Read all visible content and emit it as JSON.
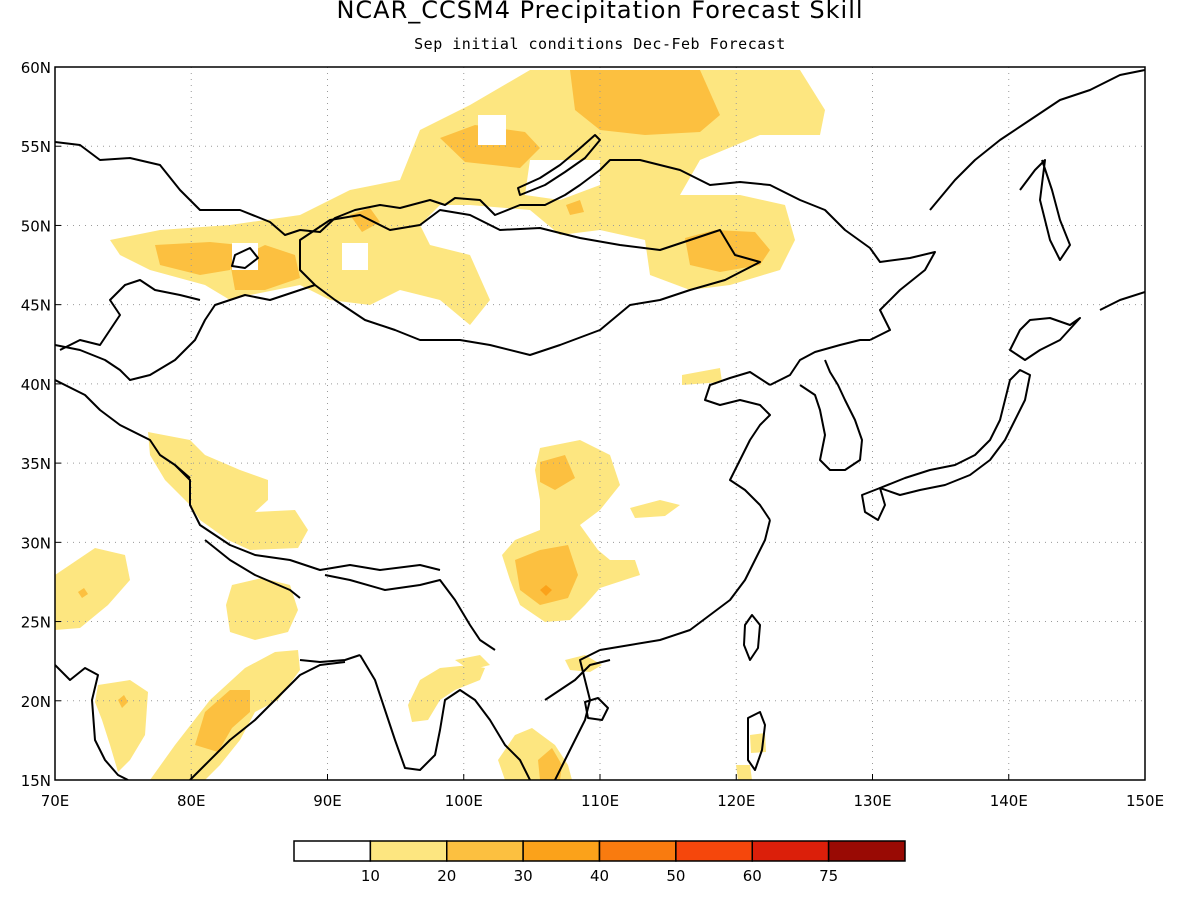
{
  "title": "NCAR_CCSM4 Precipitation Forecast Skill",
  "subtitle": "Sep initial conditions  Dec-Feb Forecast",
  "map": {
    "lon_range": [
      70,
      150
    ],
    "lat_range": [
      15,
      60
    ],
    "lon_ticks": [
      "70E",
      "80E",
      "90E",
      "100E",
      "110E",
      "120E",
      "130E",
      "140E",
      "150E"
    ],
    "lat_ticks": [
      "15N",
      "20N",
      "25N",
      "30N",
      "35N",
      "40N",
      "45N",
      "50N",
      "55N",
      "60N"
    ],
    "grid": "dotted"
  },
  "colorbar": {
    "colors": [
      "#ffffff",
      "#fde680",
      "#fcc040",
      "#fba21a",
      "#f97b0f",
      "#f5470c",
      "#db1f0a",
      "#990a04"
    ],
    "tick_labels": [
      "10",
      "20",
      "30",
      "40",
      "50",
      "60",
      "75"
    ]
  }
}
